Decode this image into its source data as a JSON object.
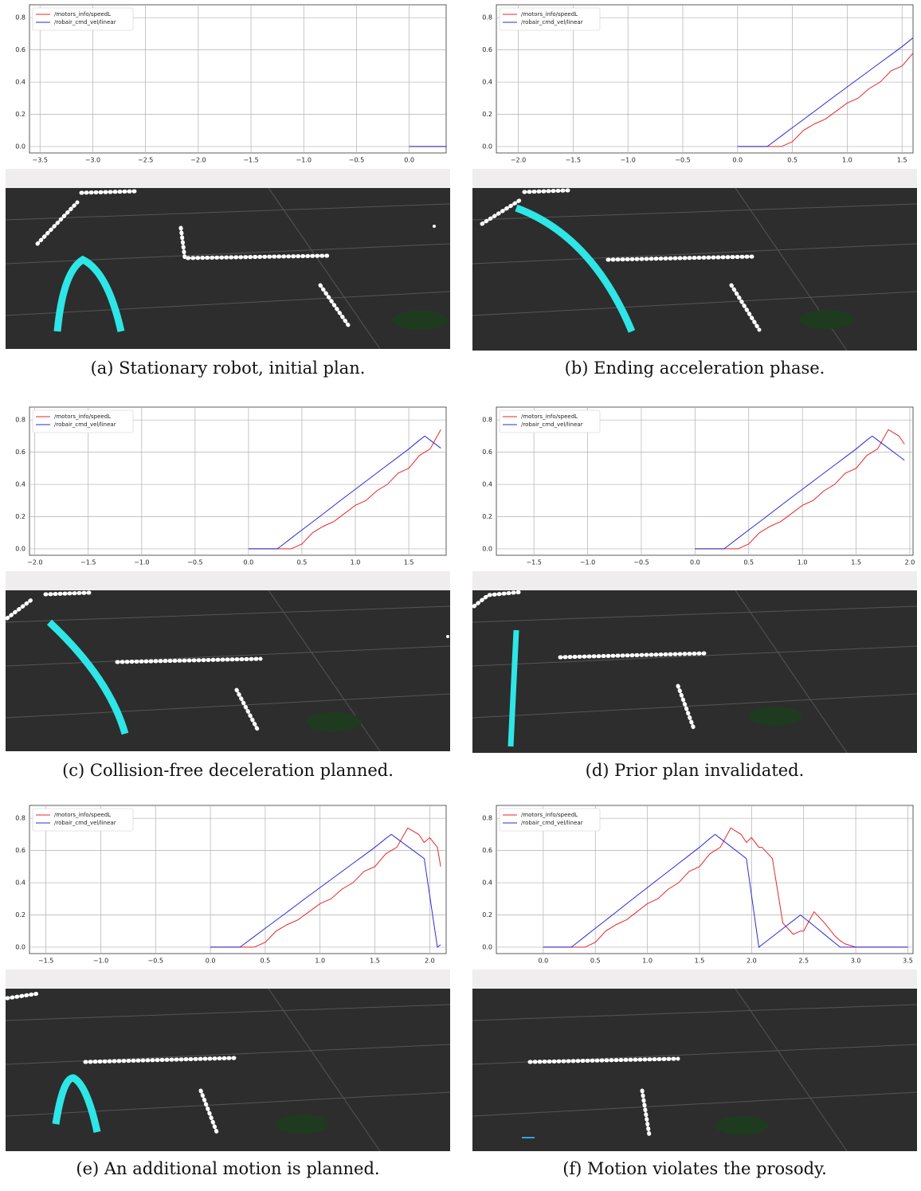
{
  "chart_data": [
    {
      "type": "line",
      "caption": "(a) Stationary robot, initial plan.",
      "x": [
        0,
        0.35
      ],
      "series": [
        {
          "name": "/motors_info/speedL",
          "color": "#e8262a",
          "values": [
            0,
            0
          ]
        },
        {
          "name": "/robair_cmd_vel/linear",
          "color": "#2b2bd9",
          "values": [
            0,
            0
          ]
        }
      ],
      "xlim": [
        -3.6,
        0.35
      ],
      "ylim": [
        -0.04,
        0.88
      ],
      "xticks": [
        {
          "value": -3.5,
          "label": "−3.5"
        },
        {
          "value": -3,
          "label": "−3.0"
        },
        {
          "value": -2.5,
          "label": "−2.5"
        },
        {
          "value": -2,
          "label": "−2.0"
        },
        {
          "value": -1.5,
          "label": "−1.5"
        },
        {
          "value": -1,
          "label": "−1.0"
        },
        {
          "value": -0.5,
          "label": "−0.5"
        },
        {
          "value": 0,
          "label": "0.0"
        }
      ],
      "yticks": [
        {
          "value": 0,
          "label": "0.0"
        },
        0.2,
        0.4,
        0.6,
        0.8
      ],
      "grid": true,
      "legend": "upper-left"
    },
    {
      "type": "line",
      "caption": "(b) Ending acceleration phase.",
      "x": [
        0,
        0.1,
        0.2,
        0.27,
        0.3,
        0.4,
        0.5,
        0.6,
        0.7,
        0.8,
        0.9,
        1.0,
        1.1,
        1.2,
        1.3,
        1.4,
        1.5,
        1.6
      ],
      "series": [
        {
          "name": "/motors_info/speedL",
          "color": "#e8262a",
          "values": [
            0,
            0,
            0,
            0,
            0,
            0,
            0.03,
            0.1,
            0.14,
            0.17,
            0.22,
            0.27,
            0.3,
            0.36,
            0.4,
            0.47,
            0.5,
            0.58
          ]
        },
        {
          "name": "/robair_cmd_vel/linear",
          "color": "#2b2bd9",
          "values": [
            0,
            0,
            0,
            0,
            0.015,
            0.066,
            0.117,
            0.167,
            0.218,
            0.269,
            0.32,
            0.37,
            0.42,
            0.47,
            0.52,
            0.57,
            0.62,
            0.675
          ]
        }
      ],
      "xlim": [
        -2.2,
        1.6
      ],
      "ylim": [
        -0.04,
        0.88
      ],
      "xticks": [
        {
          "value": -2,
          "label": "−2.0"
        },
        {
          "value": -1.5,
          "label": "−1.5"
        },
        {
          "value": -1,
          "label": "−1.0"
        },
        {
          "value": -0.5,
          "label": "−0.5"
        },
        {
          "value": 0,
          "label": "0.0"
        },
        0.5,
        {
          "value": 1,
          "label": "1.0"
        },
        1.5
      ],
      "yticks": [
        {
          "value": 0,
          "label": "0.0"
        },
        0.2,
        0.4,
        0.6,
        0.8
      ],
      "grid": true,
      "legend": "upper-left"
    },
    {
      "type": "line",
      "caption": "(c) Collision-free deceleration planned.",
      "x": [
        0,
        0.1,
        0.2,
        0.27,
        0.3,
        0.4,
        0.5,
        0.6,
        0.7,
        0.8,
        0.9,
        1.0,
        1.1,
        1.2,
        1.3,
        1.4,
        1.5,
        1.6,
        1.65,
        1.7,
        1.8
      ],
      "series": [
        {
          "name": "/motors_info/speedL",
          "color": "#e8262a",
          "values": [
            0,
            0,
            0,
            0,
            0,
            0,
            0.03,
            0.1,
            0.14,
            0.17,
            0.22,
            0.27,
            0.3,
            0.36,
            0.4,
            0.47,
            0.5,
            0.58,
            0.6,
            0.62,
            0.74
          ]
        },
        {
          "name": "/robair_cmd_vel/linear",
          "color": "#2b2bd9",
          "values": [
            0,
            0,
            0,
            0,
            0.015,
            0.066,
            0.117,
            0.167,
            0.218,
            0.269,
            0.32,
            0.37,
            0.42,
            0.47,
            0.52,
            0.57,
            0.62,
            0.675,
            0.7,
            0.675,
            0.625
          ]
        }
      ],
      "xlim": [
        -2.05,
        1.85
      ],
      "ylim": [
        -0.04,
        0.88
      ],
      "xticks": [
        {
          "value": -2,
          "label": "−2.0"
        },
        {
          "value": -1.5,
          "label": "−1.5"
        },
        {
          "value": -1,
          "label": "−1.0"
        },
        {
          "value": -0.5,
          "label": "−0.5"
        },
        {
          "value": 0,
          "label": "0.0"
        },
        0.5,
        {
          "value": 1,
          "label": "1.0"
        },
        1.5
      ],
      "yticks": [
        {
          "value": 0,
          "label": "0.0"
        },
        0.2,
        0.4,
        0.6,
        0.8
      ],
      "grid": true,
      "legend": "upper-left"
    },
    {
      "type": "line",
      "caption": "(d) Prior plan invalidated.",
      "x": [
        0,
        0.1,
        0.2,
        0.27,
        0.3,
        0.4,
        0.5,
        0.6,
        0.7,
        0.8,
        0.9,
        1.0,
        1.1,
        1.2,
        1.3,
        1.4,
        1.5,
        1.6,
        1.65,
        1.7,
        1.8,
        1.9,
        1.95
      ],
      "series": [
        {
          "name": "/motors_info/speedL",
          "color": "#e8262a",
          "values": [
            0,
            0,
            0,
            0,
            0,
            0,
            0.03,
            0.1,
            0.14,
            0.17,
            0.22,
            0.27,
            0.3,
            0.36,
            0.4,
            0.47,
            0.5,
            0.58,
            0.6,
            0.62,
            0.74,
            0.7,
            0.65
          ]
        },
        {
          "name": "/robair_cmd_vel/linear",
          "color": "#2b2bd9",
          "values": [
            0,
            0,
            0,
            0,
            0.015,
            0.066,
            0.117,
            0.167,
            0.218,
            0.269,
            0.32,
            0.37,
            0.42,
            0.47,
            0.52,
            0.57,
            0.62,
            0.675,
            0.7,
            0.675,
            0.625,
            0.575,
            0.55
          ]
        }
      ],
      "xlim": [
        -1.85,
        2.03
      ],
      "ylim": [
        -0.04,
        0.88
      ],
      "xticks": [
        {
          "value": -1.5,
          "label": "−1.5"
        },
        {
          "value": -1,
          "label": "−1.0"
        },
        {
          "value": -0.5,
          "label": "−0.5"
        },
        {
          "value": 0,
          "label": "0.0"
        },
        0.5,
        {
          "value": 1,
          "label": "1.0"
        },
        1.5,
        {
          "value": 2,
          "label": "2.0"
        }
      ],
      "yticks": [
        {
          "value": 0,
          "label": "0.0"
        },
        0.2,
        0.4,
        0.6,
        0.8
      ],
      "grid": true,
      "legend": "upper-left"
    },
    {
      "type": "line",
      "caption": "(e) An additional motion is planned.",
      "x": [
        0,
        0.1,
        0.2,
        0.27,
        0.3,
        0.4,
        0.5,
        0.6,
        0.7,
        0.8,
        0.9,
        1.0,
        1.1,
        1.2,
        1.3,
        1.4,
        1.5,
        1.6,
        1.65,
        1.7,
        1.8,
        1.9,
        1.95,
        2.0,
        2.07,
        2.1
      ],
      "series": [
        {
          "name": "/motors_info/speedL",
          "color": "#e8262a",
          "values": [
            0,
            0,
            0,
            0,
            0,
            0,
            0.03,
            0.1,
            0.14,
            0.17,
            0.22,
            0.27,
            0.3,
            0.36,
            0.4,
            0.47,
            0.5,
            0.58,
            0.6,
            0.62,
            0.74,
            0.7,
            0.65,
            0.68,
            0.62,
            0.5
          ]
        },
        {
          "name": "/robair_cmd_vel/linear",
          "color": "#2b2bd9",
          "values": [
            0,
            0,
            0,
            0,
            0.015,
            0.066,
            0.117,
            0.167,
            0.218,
            0.269,
            0.32,
            0.37,
            0.42,
            0.47,
            0.52,
            0.57,
            0.62,
            0.675,
            0.7,
            0.675,
            0.625,
            0.575,
            0.55,
            0.32,
            0,
            0.015
          ]
        }
      ],
      "xlim": [
        -1.65,
        2.15
      ],
      "ylim": [
        -0.04,
        0.88
      ],
      "xticks": [
        {
          "value": -1.5,
          "label": "−1.5"
        },
        {
          "value": -1,
          "label": "−1.0"
        },
        {
          "value": -0.5,
          "label": "−0.5"
        },
        {
          "value": 0,
          "label": "0.0"
        },
        0.5,
        {
          "value": 1,
          "label": "1.0"
        },
        1.5,
        {
          "value": 2,
          "label": "2.0"
        }
      ],
      "yticks": [
        {
          "value": 0,
          "label": "0.0"
        },
        0.2,
        0.4,
        0.6,
        0.8
      ],
      "grid": true,
      "legend": "upper-left"
    },
    {
      "type": "line",
      "caption": "(f) Motion violates the prosody.",
      "x": [
        0,
        0.1,
        0.2,
        0.27,
        0.3,
        0.4,
        0.5,
        0.6,
        0.7,
        0.8,
        0.9,
        1.0,
        1.1,
        1.2,
        1.3,
        1.4,
        1.5,
        1.6,
        1.65,
        1.7,
        1.8,
        1.9,
        1.95,
        2.0,
        2.07,
        2.1,
        2.2,
        2.3,
        2.4,
        2.47,
        2.5,
        2.6,
        2.7,
        2.8,
        2.85,
        2.9,
        3.0,
        3.1,
        3.2,
        3.3,
        3.4,
        3.5
      ],
      "series": [
        {
          "name": "/motors_info/speedL",
          "color": "#e8262a",
          "values": [
            0,
            0,
            0,
            0,
            0,
            0,
            0.03,
            0.1,
            0.14,
            0.17,
            0.22,
            0.27,
            0.3,
            0.36,
            0.4,
            0.47,
            0.5,
            0.58,
            0.6,
            0.62,
            0.74,
            0.7,
            0.65,
            0.68,
            0.62,
            0.62,
            0.55,
            0.15,
            0.08,
            0.1,
            0.1,
            0.22,
            0.15,
            0.07,
            0.04,
            0.02,
            0,
            0,
            0,
            0,
            0,
            0
          ]
        },
        {
          "name": "/robair_cmd_vel/linear",
          "color": "#2b2bd9",
          "values": [
            0,
            0,
            0,
            0,
            0.015,
            0.066,
            0.117,
            0.167,
            0.218,
            0.269,
            0.32,
            0.37,
            0.42,
            0.47,
            0.52,
            0.57,
            0.62,
            0.675,
            0.7,
            0.675,
            0.625,
            0.575,
            0.55,
            0.32,
            0,
            0.015,
            0.065,
            0.115,
            0.165,
            0.2,
            0.184,
            0.132,
            0.079,
            0.026,
            0,
            0,
            0,
            0,
            0,
            0,
            0,
            0
          ]
        }
      ],
      "xlim": [
        -0.45,
        3.55
      ],
      "ylim": [
        -0.04,
        0.88
      ],
      "xticks": [
        {
          "value": 0,
          "label": "0.0"
        },
        0.5,
        {
          "value": 1,
          "label": "1.0"
        },
        1.5,
        {
          "value": 2,
          "label": "2.0"
        },
        2.5,
        {
          "value": 3,
          "label": "3.0"
        },
        3.5
      ],
      "yticks": [
        {
          "value": 0,
          "label": "0.0"
        },
        0.2,
        0.4,
        0.6,
        0.8
      ],
      "grid": true,
      "legend": "upper-left"
    }
  ]
}
